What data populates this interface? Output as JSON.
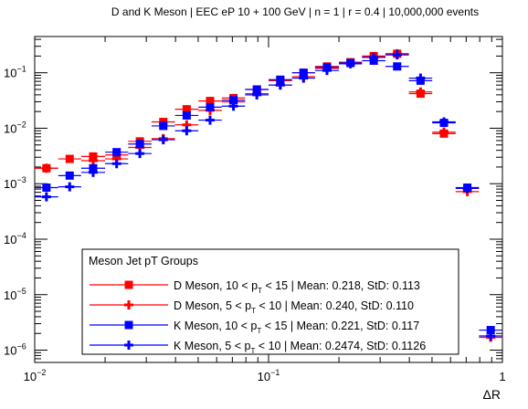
{
  "chart_data": {
    "type": "scatter",
    "title": "D and K Meson | EEC eP 10 + 100 GeV | n = 1 | r = 0.4 | 10,000,000 events",
    "xlabel": "ΔR",
    "ylabel": "",
    "xscale": "log",
    "yscale": "log",
    "xlim": [
      0.01,
      1
    ],
    "ylim": [
      6e-07,
      0.45
    ],
    "x_tick_labels": [
      {
        "value": 0.01,
        "base": "10",
        "exp": "−2"
      },
      {
        "value": 0.1,
        "base": "10",
        "exp": "−1"
      },
      {
        "value": 1,
        "base": "1",
        "exp": ""
      }
    ],
    "y_tick_labels": [
      {
        "value": 1e-06,
        "base": "10",
        "exp": "−6"
      },
      {
        "value": 1e-05,
        "base": "10",
        "exp": "−5"
      },
      {
        "value": 0.0001,
        "base": "10",
        "exp": "−4"
      },
      {
        "value": 0.001,
        "base": "10",
        "exp": "−3"
      },
      {
        "value": 0.01,
        "base": "10",
        "exp": "−2"
      },
      {
        "value": 0.1,
        "base": "10",
        "exp": "−1"
      }
    ],
    "legend": {
      "header": "Meson Jet pT Groups",
      "placement": "bottom-center"
    },
    "bin_edges": [
      0.01,
      0.0126,
      0.0158,
      0.02,
      0.0251,
      0.0316,
      0.0398,
      0.0501,
      0.0631,
      0.0794,
      0.1,
      0.126,
      0.158,
      0.2,
      0.251,
      0.316,
      0.398,
      0.501,
      0.631,
      0.794,
      1.0
    ],
    "series": [
      {
        "name": "D Meson, 10 < p_T < 15 | Mean: 0.218, StD: 0.113",
        "label_parts": [
          "D Meson, 10 < p",
          "T",
          "< 15 | Mean: 0.218, StD: 0.113"
        ],
        "color": "#ff0000",
        "marker": "square",
        "values": [
          0.0019,
          0.0028,
          0.0031,
          0.0033,
          0.0058,
          0.013,
          0.022,
          0.031,
          0.035,
          0.05,
          0.072,
          0.1,
          0.13,
          0.155,
          0.2,
          0.22,
          0.042,
          0.008,
          null,
          null
        ]
      },
      {
        "name": "D Meson, 5 < p_T < 10 | Mean: 0.240, StD: 0.110",
        "label_parts": [
          "D Meson,  5 < p",
          "T",
          "< 10 | Mean: 0.240, StD: 0.110"
        ],
        "color": "#ff0000",
        "marker": "cross",
        "values": [
          0.0019,
          null,
          0.0026,
          0.0028,
          0.0045,
          0.0065,
          0.0115,
          0.021,
          0.03,
          0.042,
          0.06,
          0.085,
          0.12,
          0.15,
          0.19,
          0.22,
          0.045,
          0.0085,
          0.00072,
          1.7e-06
        ]
      },
      {
        "name": "K Meson, 10 < p_T < 15 | Mean: 0.221, StD: 0.117",
        "label_parts": [
          "K Meson, 10 < p",
          "T",
          "< 15 | Mean: 0.221, StD: 0.117"
        ],
        "color": "#0000ff",
        "marker": "square",
        "values": [
          0.00085,
          0.0014,
          0.0019,
          0.0037,
          0.0052,
          0.011,
          0.017,
          0.024,
          0.032,
          0.05,
          0.075,
          0.1,
          0.125,
          0.15,
          0.165,
          0.13,
          0.072,
          0.0125,
          0.00085,
          2.3e-06
        ]
      },
      {
        "name": "K Meson, 5 < p_T < 10 | Mean: 0.2474, StD: 0.1126",
        "label_parts": [
          "K Meson,  5 < p",
          "T",
          "< 10 | Mean: 0.2474, StD: 0.1126"
        ],
        "color": "#0000ff",
        "marker": "cross",
        "values": [
          0.00058,
          0.00088,
          0.0016,
          0.0023,
          0.0035,
          0.0062,
          0.009,
          0.014,
          0.025,
          0.04,
          0.06,
          0.08,
          0.11,
          0.145,
          0.19,
          0.21,
          0.08,
          0.013,
          0.00082,
          1.8e-06
        ]
      }
    ]
  }
}
